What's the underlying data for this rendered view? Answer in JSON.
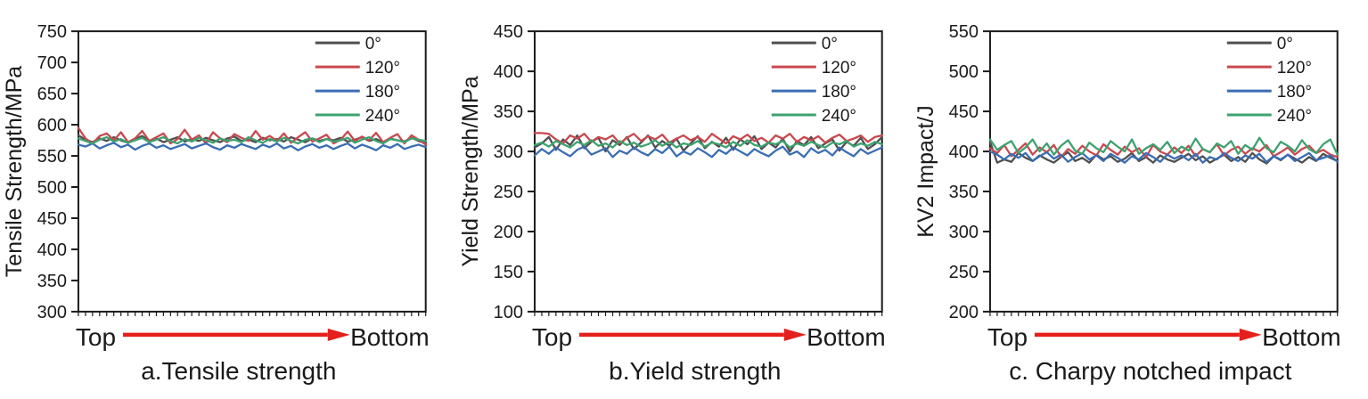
{
  "figure": {
    "background": "#ffffff",
    "axis_color": "#1a1a1a",
    "arrow_color": "#e4201c",
    "series_labels": [
      "0°",
      "120°",
      "180°",
      "240°"
    ],
    "series_colors": [
      "#4f4f4f",
      "#c9484e",
      "#3a6db4",
      "#3da26f"
    ],
    "legend_position": "top-right"
  },
  "chart_data": [
    {
      "type": "line",
      "caption": "a.Tensile strength",
      "ylabel": "Tensile Strength/MPa",
      "x_start_label": "Top",
      "x_end_label": "Bottom",
      "ylim": [
        300,
        750
      ],
      "yticks": [
        300,
        350,
        400,
        450,
        500,
        550,
        600,
        650,
        700,
        750
      ],
      "grid": false,
      "legend_position": "top-right",
      "series": [
        {
          "name": "0°",
          "color": "#4f4f4f",
          "values": [
            583,
            576,
            572,
            578,
            574,
            580,
            575,
            571,
            577,
            582,
            574,
            578,
            572,
            576,
            580,
            573,
            577,
            574,
            579,
            575,
            572,
            578,
            581,
            574,
            576,
            572,
            579,
            575,
            577,
            573,
            580,
            576,
            572,
            578,
            574,
            577,
            575,
            579,
            573,
            576,
            580,
            574,
            577,
            572,
            578,
            575,
            573,
            579,
            574,
            570
          ]
        },
        {
          "name": "120°",
          "color": "#c9484e",
          "values": [
            595,
            578,
            570,
            582,
            586,
            575,
            588,
            572,
            578,
            590,
            574,
            580,
            586,
            570,
            577,
            592,
            576,
            583,
            570,
            588,
            578,
            572,
            585,
            579,
            574,
            590,
            576,
            582,
            574,
            586,
            571,
            580,
            588,
            573,
            578,
            584,
            570,
            576,
            589,
            574,
            581,
            575,
            587,
            572,
            579,
            585,
            570,
            583,
            576,
            568
          ]
        },
        {
          "name": "180°",
          "color": "#3a6db4",
          "values": [
            568,
            565,
            570,
            562,
            567,
            571,
            564,
            568,
            560,
            566,
            570,
            563,
            567,
            561,
            565,
            569,
            562,
            566,
            570,
            564,
            560,
            567,
            563,
            569,
            565,
            561,
            568,
            564,
            570,
            562,
            566,
            559,
            565,
            569,
            563,
            567,
            561,
            566,
            570,
            562,
            568,
            564,
            559,
            567,
            563,
            569,
            561,
            565,
            568,
            564
          ]
        },
        {
          "name": "240°",
          "color": "#3da26f",
          "values": [
            578,
            574,
            570,
            576,
            580,
            573,
            577,
            571,
            575,
            579,
            572,
            576,
            580,
            574,
            570,
            577,
            573,
            579,
            575,
            571,
            578,
            574,
            576,
            572,
            580,
            575,
            571,
            577,
            573,
            579,
            574,
            570,
            576,
            578,
            572,
            577,
            573,
            575,
            579,
            571,
            576,
            580,
            574,
            570,
            577,
            575,
            572,
            578,
            576,
            574
          ]
        }
      ]
    },
    {
      "type": "line",
      "caption": "b.Yield strength",
      "ylabel": "Yield Strength/MPa",
      "x_start_label": "Top",
      "x_end_label": "Bottom",
      "ylim": [
        100,
        450
      ],
      "yticks": [
        100,
        150,
        200,
        250,
        300,
        350,
        400,
        450
      ],
      "grid": false,
      "legend_position": "top-right",
      "series": [
        {
          "name": "0°",
          "color": "#4f4f4f",
          "values": [
            305,
            310,
            318,
            302,
            315,
            308,
            320,
            304,
            312,
            317,
            300,
            314,
            308,
            318,
            303,
            311,
            320,
            305,
            313,
            307,
            316,
            301,
            310,
            319,
            304,
            312,
            306,
            317,
            302,
            315,
            309,
            319,
            303,
            311,
            305,
            316,
            300,
            313,
            308,
            318,
            304,
            310,
            315,
            301,
            312,
            307,
            317,
            303,
            309,
            318
          ]
        },
        {
          "name": "120°",
          "color": "#c9484e",
          "values": [
            323,
            323,
            322,
            315,
            310,
            320,
            316,
            322,
            312,
            318,
            315,
            320,
            310,
            317,
            322,
            313,
            319,
            315,
            321,
            311,
            316,
            320,
            314,
            318,
            312,
            322,
            316,
            310,
            319,
            315,
            321,
            313,
            317,
            311,
            320,
            316,
            322,
            312,
            318,
            314,
            319,
            311,
            317,
            321,
            313,
            316,
            320,
            312,
            318,
            320
          ]
        },
        {
          "name": "180°",
          "color": "#3a6db4",
          "values": [
            295,
            303,
            297,
            305,
            299,
            294,
            302,
            306,
            296,
            300,
            304,
            293,
            301,
            297,
            305,
            299,
            295,
            303,
            298,
            306,
            294,
            300,
            296,
            304,
            299,
            293,
            302,
            297,
            305,
            300,
            295,
            303,
            298,
            294,
            301,
            306,
            296,
            300,
            293,
            304,
            298,
            302,
            295,
            305,
            299,
            294,
            303,
            297,
            301,
            305
          ]
        },
        {
          "name": "240°",
          "color": "#3da26f",
          "values": [
            308,
            311,
            306,
            313,
            309,
            305,
            312,
            308,
            314,
            307,
            310,
            305,
            313,
            308,
            311,
            306,
            309,
            314,
            307,
            312,
            305,
            310,
            308,
            313,
            306,
            311,
            309,
            305,
            312,
            307,
            314,
            308,
            306,
            311,
            309,
            313,
            305,
            310,
            307,
            312,
            308,
            305,
            311,
            309,
            313,
            306,
            310,
            307,
            312,
            309
          ]
        }
      ]
    },
    {
      "type": "line",
      "caption": "c. Charpy notched impact",
      "ylabel": "KV2 Impact/J",
      "x_start_label": "Top",
      "x_end_label": "Bottom",
      "ylim": [
        200,
        550
      ],
      "yticks": [
        200,
        250,
        300,
        350,
        400,
        450,
        500,
        550
      ],
      "grid": false,
      "legend_position": "top-right",
      "series": [
        {
          "name": "0°",
          "color": "#4f4f4f",
          "values": [
            412,
            386,
            390,
            387,
            398,
            392,
            388,
            395,
            390,
            386,
            393,
            399,
            388,
            392,
            386,
            396,
            390,
            394,
            387,
            391,
            398,
            388,
            393,
            386,
            395,
            390,
            387,
            392,
            397,
            389,
            394,
            386,
            391,
            396,
            388,
            393,
            387,
            398,
            390,
            385,
            394,
            389,
            396,
            391,
            386,
            393,
            388,
            397,
            392,
            388
          ]
        },
        {
          "name": "120°",
          "color": "#c9484e",
          "values": [
            404,
            398,
            408,
            394,
            402,
            410,
            396,
            405,
            399,
            408,
            393,
            403,
            397,
            407,
            400,
            395,
            409,
            402,
            396,
            406,
            399,
            404,
            393,
            408,
            400,
            396,
            405,
            398,
            407,
            394,
            403,
            399,
            409,
            395,
            402,
            406,
            397,
            404,
            400,
            408,
            394,
            399,
            405,
            396,
            403,
            407,
            398,
            402,
            396,
            393
          ]
        },
        {
          "name": "180°",
          "color": "#3a6db4",
          "values": [
            400,
            396,
            390,
            397,
            392,
            398,
            388,
            394,
            399,
            391,
            396,
            387,
            393,
            398,
            390,
            395,
            388,
            397,
            392,
            386,
            394,
            390,
            398,
            393,
            387,
            396,
            391,
            395,
            389,
            397,
            386,
            393,
            390,
            398,
            392,
            388,
            395,
            391,
            397,
            387,
            394,
            390,
            396,
            388,
            393,
            398,
            389,
            392,
            395,
            387
          ]
        },
        {
          "name": "240°",
          "color": "#3da26f",
          "values": [
            415,
            402,
            408,
            413,
            398,
            405,
            415,
            400,
            410,
            396,
            407,
            414,
            401,
            397,
            411,
            404,
            399,
            413,
            406,
            400,
            415,
            397,
            404,
            409,
            402,
            412,
            398,
            406,
            401,
            416,
            403,
            399,
            410,
            405,
            413,
            397,
            408,
            402,
            417,
            404,
            399,
            412,
            407,
            400,
            414,
            403,
            398,
            409,
            415,
            396
          ]
        }
      ]
    }
  ]
}
